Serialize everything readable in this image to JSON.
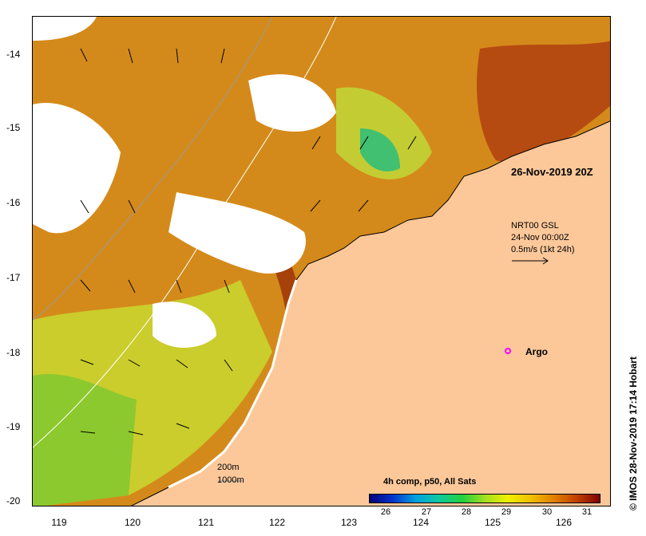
{
  "map": {
    "title": "26-Nov-2019 20Z",
    "lat_ticks": [
      "-14",
      "-15",
      "-16",
      "-17",
      "-18",
      "-19",
      "-20"
    ],
    "lon_ticks": [
      "119",
      "120",
      "121",
      "122",
      "123",
      "124",
      "125",
      "126"
    ],
    "currents": {
      "source": "NRT00 GSL",
      "date": "24-Nov 00:00Z",
      "scale": "0.5m/s (1kt 24h)"
    },
    "argo_label": "Argo",
    "isobath_200": "200m",
    "isobath_1000": "1000m",
    "credit": "© IMOS 28-Nov-2019 17:14 Hobart",
    "colorbar": {
      "title": "4h comp, p50, All Sats",
      "ticks": [
        "26",
        "27",
        "28",
        "29",
        "30",
        "31"
      ]
    },
    "colors": {
      "land": "#fcc89a",
      "warm": "#c8620c",
      "mid": "#e0a020",
      "cool": "#d8e030",
      "cold": "#30c060",
      "cloud": "#ffffff",
      "argo": "#ff00ff"
    }
  }
}
